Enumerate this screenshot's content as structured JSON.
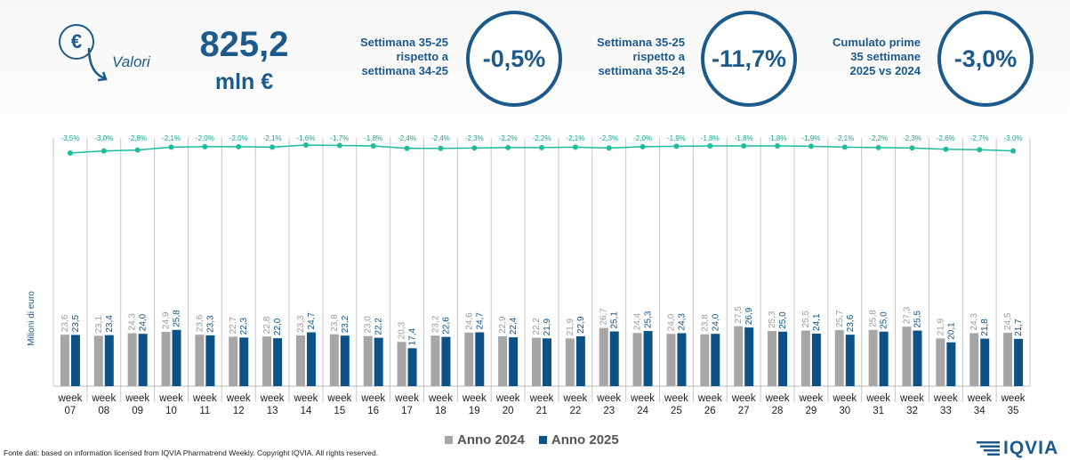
{
  "header": {
    "kpi_icon_symbol": "€",
    "kpi_icon": "euro-down-arrow-icon",
    "kpi_label": "Valori",
    "kpi_value": "825,2",
    "kpi_unit": "mln €"
  },
  "comparisons": [
    {
      "label_lines": [
        "Settimana 35-25",
        "rispetto a",
        "settimana 34-25"
      ],
      "value": "-0,5%"
    },
    {
      "label_lines": [
        "Settimana 35-25",
        "rispetto a",
        "settimana 35-24"
      ],
      "value": "-11,7%"
    },
    {
      "label_lines": [
        "Cumulato prime",
        "35 settimane",
        "2025 vs 2024"
      ],
      "value": "-3,0%"
    }
  ],
  "chart_data": {
    "type": "bar",
    "ylabel": "Milioni di euro",
    "categories": [
      "week 07",
      "week 08",
      "week 09",
      "week 10",
      "week 11",
      "week 12",
      "week 13",
      "week 14",
      "week 15",
      "week 16",
      "week 17",
      "week 18",
      "week 19",
      "week 20",
      "week 21",
      "week 22",
      "week 23",
      "week 24",
      "week 25",
      "week 26",
      "week 27",
      "week 28",
      "week 29",
      "week 30",
      "week 31",
      "week 32",
      "week 33",
      "week 34",
      "week 35"
    ],
    "series": [
      {
        "name": "Anno 2024",
        "color": "#a6a6a6",
        "values": [
          23.6,
          23.1,
          24.3,
          24.9,
          23.6,
          22.7,
          22.8,
          23.3,
          23.8,
          23.0,
          20.3,
          23.2,
          24.6,
          22.9,
          22.2,
          21.9,
          26.7,
          24.4,
          24.0,
          23.8,
          27.5,
          25.3,
          25.5,
          25.7,
          25.8,
          27.3,
          21.9,
          24.3,
          24.5
        ]
      },
      {
        "name": "Anno 2025",
        "color": "#0d5287",
        "values": [
          23.5,
          23.4,
          24.0,
          25.8,
          23.3,
          22.3,
          22.0,
          24.7,
          23.2,
          22.2,
          17.4,
          22.6,
          24.7,
          22.4,
          21.9,
          22.9,
          25.1,
          25.3,
          24.3,
          24.0,
          26.9,
          25.0,
          24.1,
          23.6,
          25.0,
          25.5,
          20.1,
          21.8,
          21.7
        ]
      }
    ],
    "value_labels": {
      "Anno 2024": [
        "23,6",
        "23,1",
        "24,3",
        "24,9",
        "23,6",
        "22,7",
        "22,8",
        "23,3",
        "23,8",
        "23,0",
        "20,3",
        "23,2",
        "24,6",
        "22,9",
        "22,2",
        "21,9",
        "26,7",
        "24,4",
        "24,0",
        "23,8",
        "27,5",
        "25,3",
        "25,5",
        "25,7",
        "25,8",
        "27,3",
        "21,9",
        "24,3",
        "24,5"
      ],
      "Anno 2025": [
        "23,5",
        "23,4",
        "24,0",
        "25,8",
        "23,3",
        "22,3",
        "22,0",
        "24,7",
        "23,2",
        "22,2",
        "17,4",
        "22,6",
        "24,7",
        "22,4",
        "21,9",
        "22,9",
        "25,1",
        "25,3",
        "24,3",
        "24,0",
        "26,9",
        "25,0",
        "24,1",
        "23,6",
        "25,0",
        "25,5",
        "20,1",
        "21,8",
        "21,7"
      ]
    },
    "ylim": [
      0,
      90
    ],
    "cumulative_change": {
      "color": "#1ebc9c",
      "values": [
        -3.5,
        -3.0,
        -2.8,
        -2.1,
        -2.0,
        -2.0,
        -2.1,
        -1.6,
        -1.7,
        -1.8,
        -2.4,
        -2.4,
        -2.3,
        -2.2,
        -2.2,
        -2.1,
        -2.3,
        -2.0,
        -1.9,
        -1.8,
        -1.8,
        -1.8,
        -1.9,
        -2.1,
        -2.2,
        -2.3,
        -2.6,
        -2.7,
        -3.0
      ],
      "labels": [
        "-3,5%",
        "-3,0%",
        "-2,8%",
        "-2,1%",
        "-2,0%",
        "-2,0%",
        "-2,1%",
        "-1,6%",
        "-1,7%",
        "-1,8%",
        "-2,4%",
        "-2,4%",
        "-2,3%",
        "-2,2%",
        "-2,2%",
        "-2,1%",
        "-2,3%",
        "-2,0%",
        "-1,9%",
        "-1,8%",
        "-1,8%",
        "-1,8%",
        "-1,9%",
        "-2,1%",
        "-2,2%",
        "-2,3%",
        "-2,6%",
        "-2,7%",
        "-3,0%"
      ]
    },
    "legend_position": "bottom",
    "grid": false
  },
  "footer": {
    "source": "Fonte dati: based on information licensed from IQVIA Pharmatrend Weekly. Copyright IQVIA. All rights reserved.",
    "logo_text": "IQVIA"
  }
}
